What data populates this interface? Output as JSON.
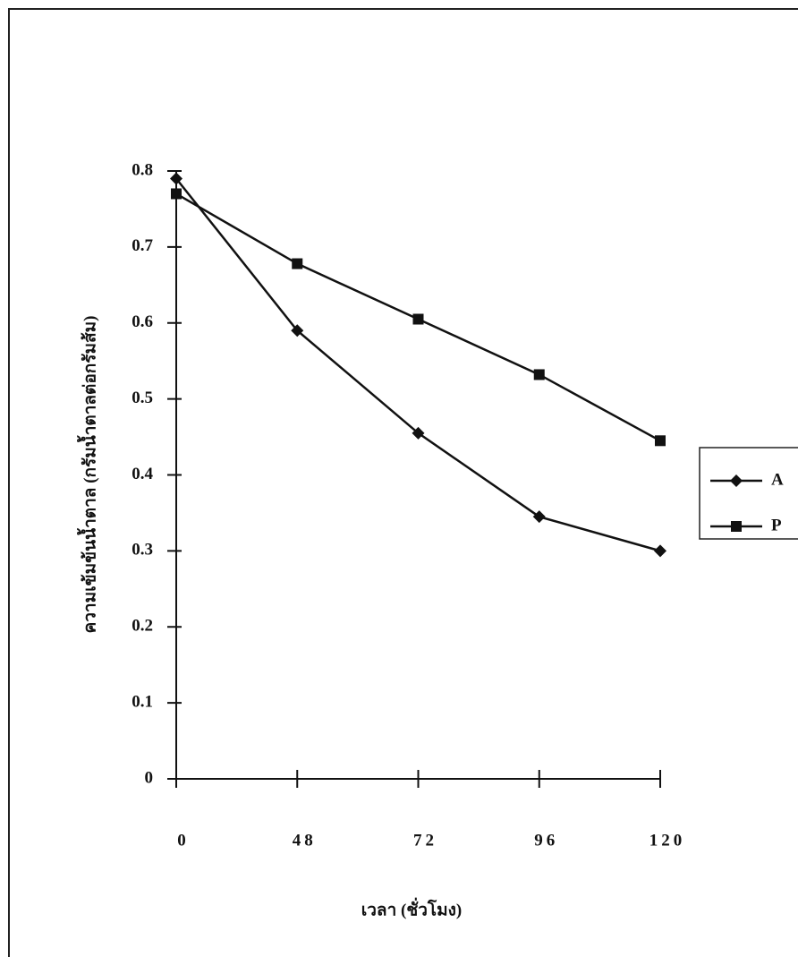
{
  "chart_data": {
    "type": "line",
    "x_label": "เวลา (ชั่วโมง)",
    "y_label": "ความเข้มข้นน้ำตาล (กรัมน้ำตาลต่อกรัมส้ม)",
    "categories": [
      "0",
      "48",
      "72",
      "96",
      "120"
    ],
    "series": [
      {
        "name": "A",
        "color": "#111111",
        "marker": "diamond",
        "values": [
          0.79,
          0.59,
          0.455,
          0.345,
          0.3
        ]
      },
      {
        "name": "P",
        "color": "#111111",
        "marker": "square",
        "values": [
          0.77,
          0.678,
          0.605,
          0.532,
          0.445
        ]
      }
    ],
    "ylim": [
      0,
      0.8
    ],
    "yticks": [
      0,
      0.1,
      0.2,
      0.3,
      0.4,
      0.5,
      0.6,
      0.7,
      0.8
    ],
    "grid": false,
    "legend": "right"
  }
}
